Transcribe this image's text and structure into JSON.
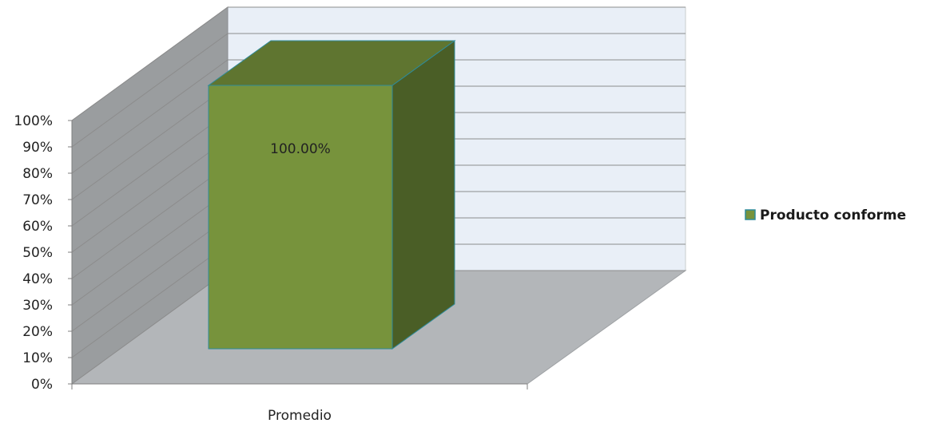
{
  "chart_data": {
    "type": "bar",
    "style": "3d-column",
    "categories": [
      "Promedio"
    ],
    "series": [
      {
        "name": "Producto conforme",
        "values": [
          100.0
        ]
      }
    ],
    "data_labels": [
      "100.00%"
    ],
    "y_ticks": [
      "0%",
      "10%",
      "20%",
      "30%",
      "40%",
      "50%",
      "60%",
      "70%",
      "80%",
      "90%",
      "100%"
    ],
    "ylim": [
      0,
      100
    ],
    "grid": true,
    "legend_position": "right",
    "colors": {
      "bar_front": "#77933C",
      "bar_top": "#5F7530",
      "bar_side": "#4A5E26",
      "bar_edge": "#2E8B9A",
      "back_wall": "#E9EFF7",
      "side_wall": "#9A9D9F",
      "floor": "#B3B6B9",
      "grid": "#8C8C8C"
    }
  }
}
